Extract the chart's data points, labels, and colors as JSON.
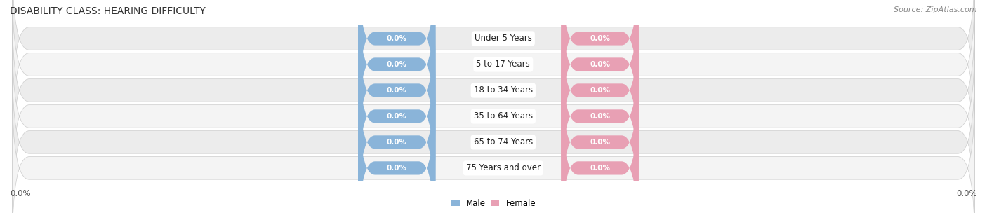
{
  "title": "DISABILITY CLASS: HEARING DIFFICULTY",
  "source_text": "Source: ZipAtlas.com",
  "categories": [
    "Under 5 Years",
    "5 to 17 Years",
    "18 to 34 Years",
    "35 to 64 Years",
    "65 to 74 Years",
    "75 Years and over"
  ],
  "male_values": [
    0.0,
    0.0,
    0.0,
    0.0,
    0.0,
    0.0
  ],
  "female_values": [
    0.0,
    0.0,
    0.0,
    0.0,
    0.0,
    0.0
  ],
  "male_color": "#8ab4d9",
  "female_color": "#e8a0b4",
  "row_bg_odd": "#ececec",
  "row_bg_even": "#f4f4f4",
  "label_color": "#ffffff",
  "category_label_color": "#222222",
  "axis_label_color": "#555555",
  "title_color": "#333333",
  "source_color": "#888888",
  "x_left_label": "0.0%",
  "x_right_label": "0.0%",
  "legend_male": "Male",
  "legend_female": "Female",
  "title_fontsize": 10,
  "source_fontsize": 8,
  "label_fontsize": 7.5,
  "category_fontsize": 8.5,
  "axis_fontsize": 8.5,
  "legend_fontsize": 8.5,
  "background_color": "#ffffff"
}
